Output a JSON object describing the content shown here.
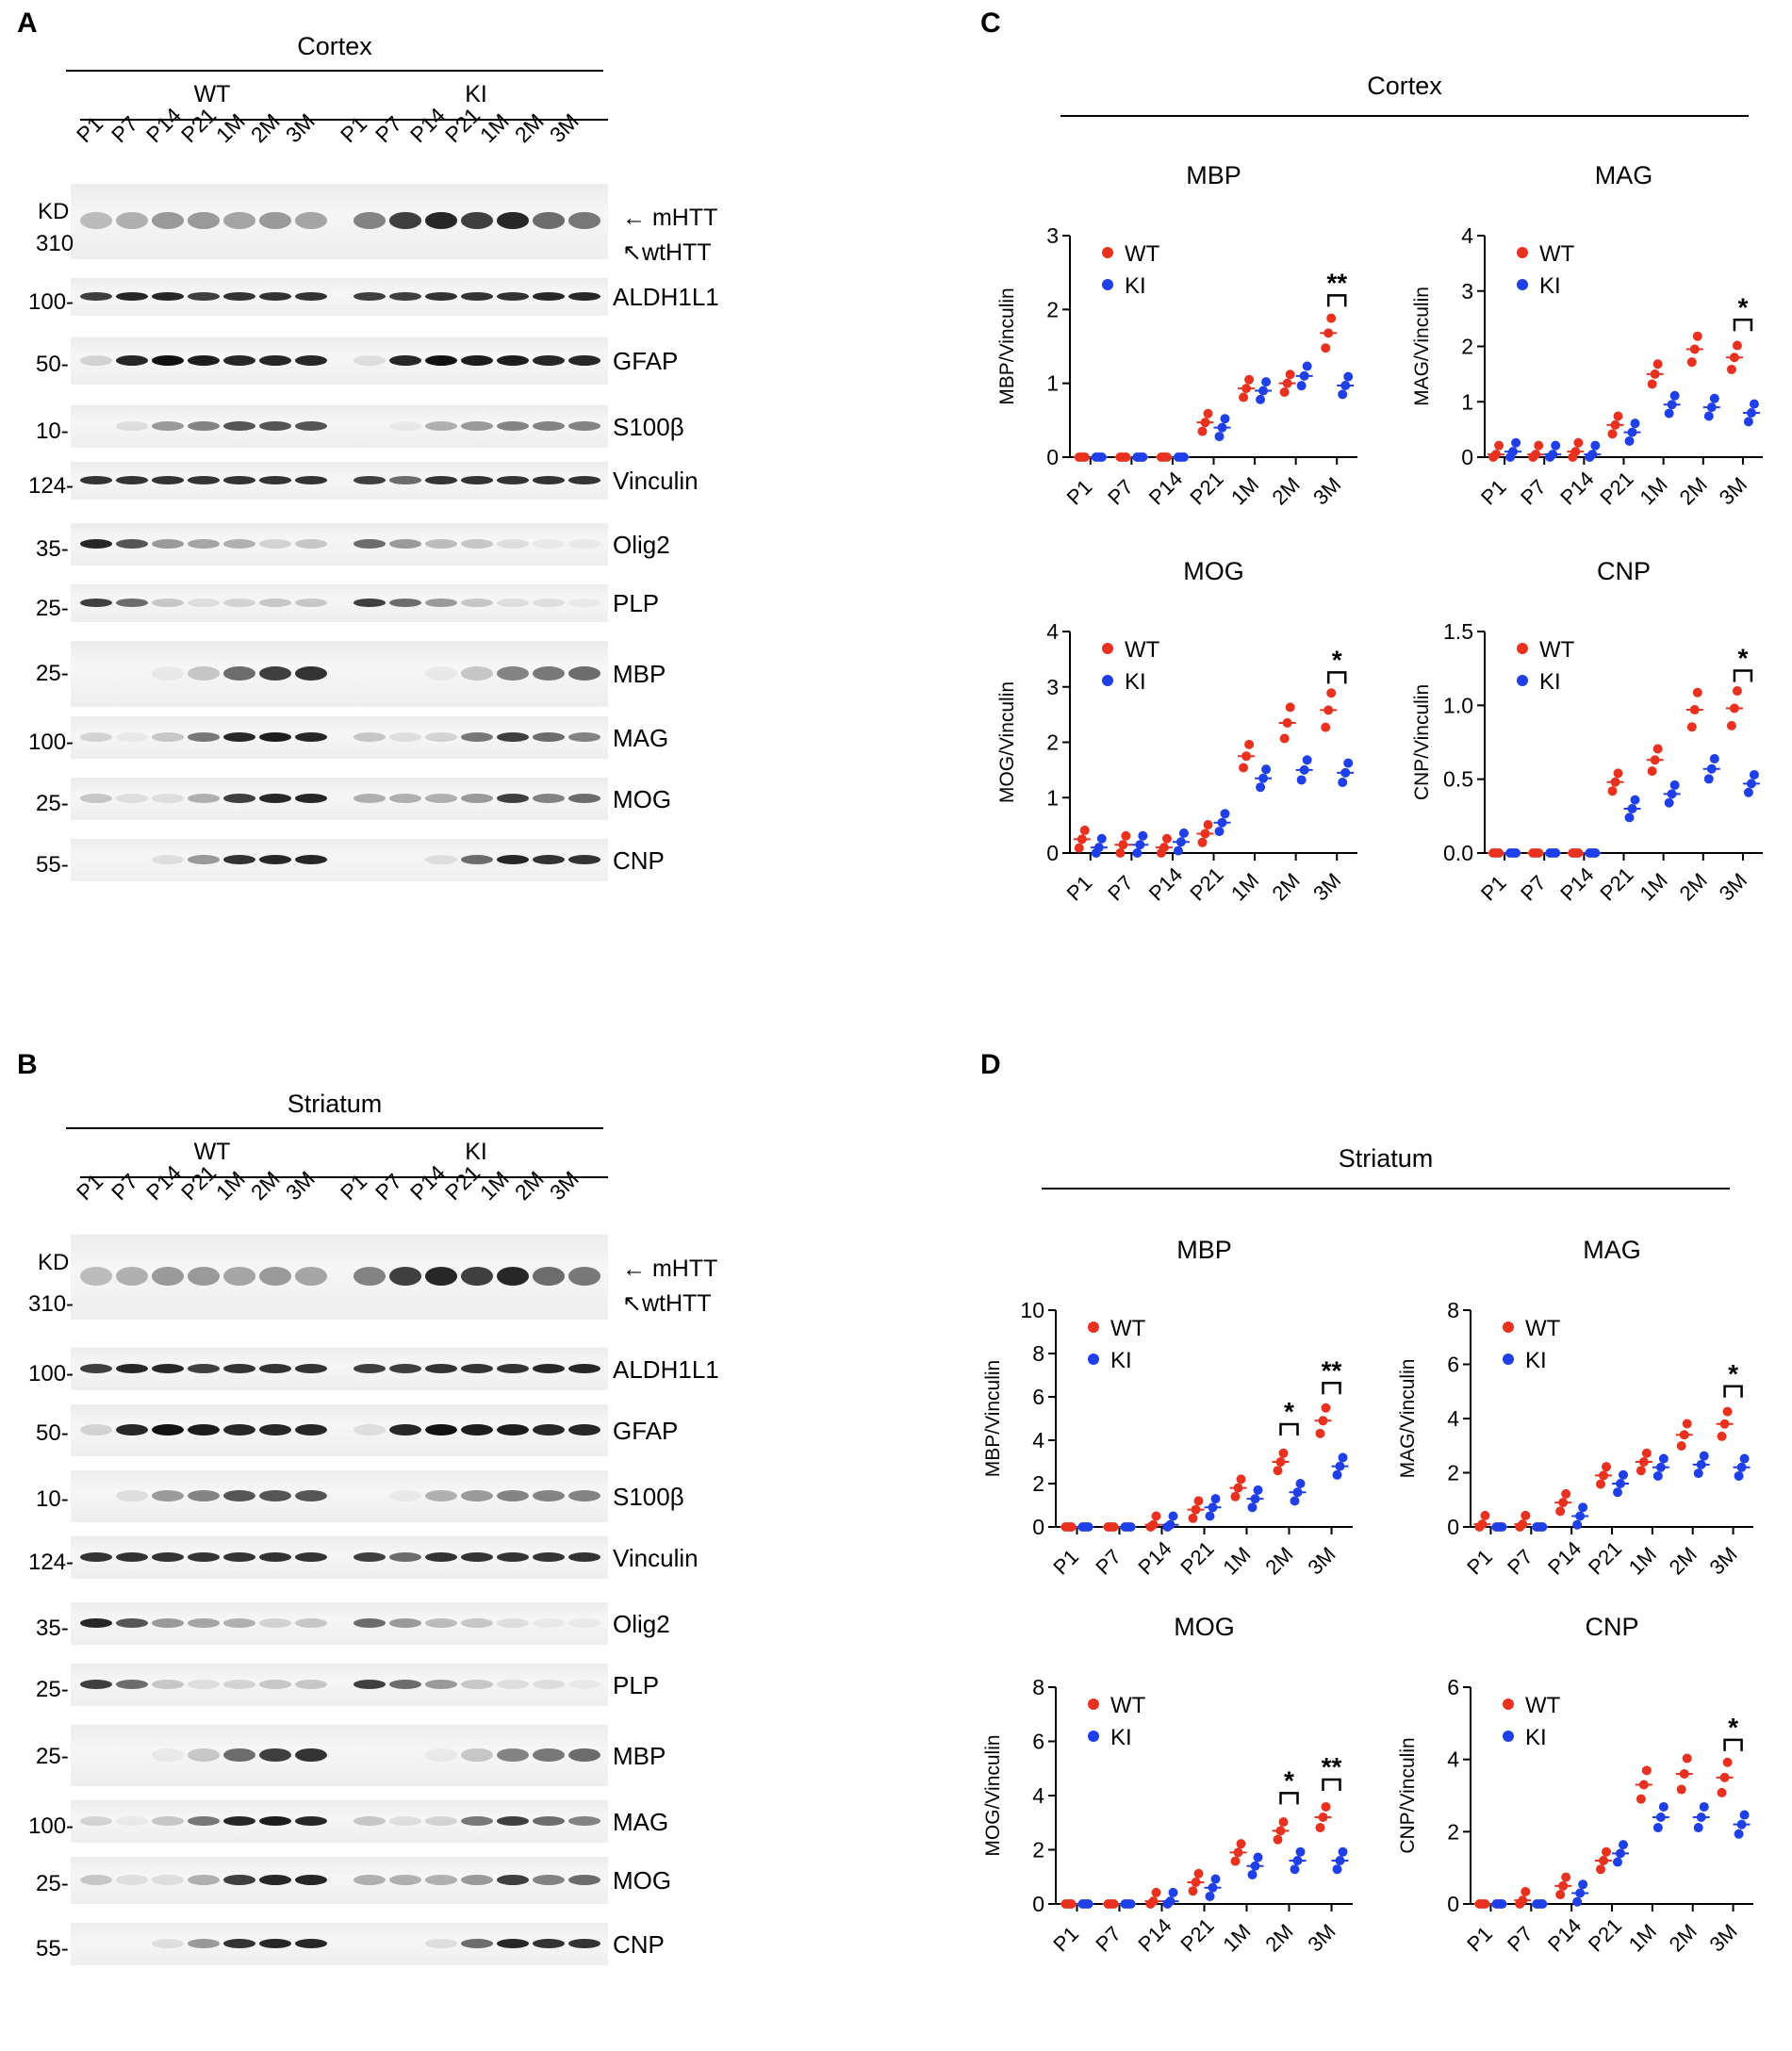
{
  "blots": [
    {
      "letter": "A",
      "region": "Cortex",
      "genotypes": [
        "WT",
        "KI"
      ],
      "lanes": [
        "P1",
        "P7",
        "P14",
        "P21",
        "1M",
        "2M",
        "3M"
      ],
      "kd_header": "KD",
      "rows": [
        {
          "protein": "",
          "marker": "310",
          "htt": true
        },
        {
          "protein": "ALDH1L1",
          "marker": "100-"
        },
        {
          "protein": "GFAP",
          "marker": "50-"
        },
        {
          "protein": "S100β",
          "marker": "10-"
        },
        {
          "protein": "Vinculin",
          "marker": "124-"
        },
        {
          "protein": "Olig2",
          "marker": "35-"
        },
        {
          "protein": "PLP",
          "marker": "25-"
        },
        {
          "protein": "MBP",
          "marker": "25-"
        },
        {
          "protein": "MAG",
          "marker": "100-"
        },
        {
          "protein": "MOG",
          "marker": "25-"
        },
        {
          "protein": "CNP",
          "marker": "55-"
        }
      ],
      "htt_labels": [
        "mHTT",
        "wtHTT"
      ]
    },
    {
      "letter": "B",
      "region": "Striatum",
      "genotypes": [
        "WT",
        "KI"
      ],
      "lanes": [
        "P1",
        "P7",
        "P14",
        "P21",
        "1M",
        "2M",
        "3M"
      ],
      "kd_header": "KD",
      "rows": [
        {
          "protein": "",
          "marker": "310-",
          "htt": true
        },
        {
          "protein": "ALDH1L1",
          "marker": "100-"
        },
        {
          "protein": "GFAP",
          "marker": "50-"
        },
        {
          "protein": "S100β",
          "marker": "10-"
        },
        {
          "protein": "Vinculin",
          "marker": "124-"
        },
        {
          "protein": "Olig2",
          "marker": "35-"
        },
        {
          "protein": "PLP",
          "marker": "25-"
        },
        {
          "protein": "MBP",
          "marker": "25-"
        },
        {
          "protein": "MAG",
          "marker": "100-"
        },
        {
          "protein": "MOG",
          "marker": "25-"
        },
        {
          "protein": "CNP",
          "marker": "55-"
        }
      ],
      "htt_labels": [
        "mHTT",
        "wtHTT"
      ]
    }
  ],
  "panels": [
    {
      "letter": "C",
      "region": "Cortex"
    },
    {
      "letter": "D",
      "region": "Striatum"
    }
  ],
  "colors": {
    "wt": "#e8321f",
    "ki": "#1f3fe8"
  },
  "chart_data": [
    {
      "type": "scatter",
      "title": "MBP",
      "ylabel": "MBP/Vinculin",
      "ylim": [
        0,
        3
      ],
      "yticks": [
        "0",
        "1",
        "2",
        "3"
      ],
      "categories": [
        "P1",
        "P7",
        "P14",
        "P21",
        "1M",
        "2M",
        "3M"
      ],
      "series": [
        {
          "name": "WT",
          "values": [
            0,
            0,
            0,
            0.47,
            0.93,
            1.0,
            1.68
          ]
        },
        {
          "name": "KI",
          "values": [
            0,
            0,
            0,
            0.4,
            0.9,
            1.1,
            0.97
          ]
        }
      ],
      "annotations": [
        {
          "category": "3M",
          "text": "**"
        }
      ]
    },
    {
      "type": "scatter",
      "title": "MAG",
      "ylabel": "MAG/Vinculin",
      "ylim": [
        0,
        4
      ],
      "yticks": [
        "0",
        "1",
        "2",
        "3",
        "4"
      ],
      "categories": [
        "P1",
        "P7",
        "P14",
        "P21",
        "1M",
        "2M",
        "3M"
      ],
      "series": [
        {
          "name": "WT",
          "values": [
            0.05,
            0.05,
            0.1,
            0.58,
            1.5,
            1.95,
            1.8
          ]
        },
        {
          "name": "KI",
          "values": [
            0.1,
            0.05,
            0.05,
            0.45,
            0.95,
            0.9,
            0.8
          ]
        }
      ],
      "annotations": [
        {
          "category": "3M",
          "text": "*"
        }
      ]
    },
    {
      "type": "scatter",
      "title": "MOG",
      "ylabel": "MOG/Vinculin",
      "ylim": [
        0,
        4
      ],
      "yticks": [
        "0",
        "1",
        "2",
        "3",
        "4"
      ],
      "categories": [
        "P1",
        "P7",
        "P14",
        "P21",
        "1M",
        "2M",
        "3M"
      ],
      "series": [
        {
          "name": "WT",
          "values": [
            0.25,
            0.15,
            0.1,
            0.35,
            1.75,
            2.35,
            2.58
          ]
        },
        {
          "name": "KI",
          "values": [
            0.1,
            0.15,
            0.2,
            0.55,
            1.35,
            1.5,
            1.45
          ]
        }
      ],
      "annotations": [
        {
          "category": "3M",
          "text": "*"
        }
      ]
    },
    {
      "type": "scatter",
      "title": "CNP",
      "ylabel": "CNP/Vinculin",
      "ylim": [
        0,
        1.5
      ],
      "yticks": [
        "0.0",
        "0.5",
        "1.0",
        "1.5"
      ],
      "categories": [
        "P1",
        "P7",
        "P14",
        "P21",
        "1M",
        "2M",
        "3M"
      ],
      "series": [
        {
          "name": "WT",
          "values": [
            0,
            0,
            0,
            0.48,
            0.63,
            0.97,
            0.98
          ]
        },
        {
          "name": "KI",
          "values": [
            0,
            0,
            0,
            0.3,
            0.4,
            0.57,
            0.47
          ]
        }
      ],
      "annotations": [
        {
          "category": "3M",
          "text": "*"
        }
      ]
    },
    {
      "type": "scatter",
      "title": "MBP",
      "ylabel": "MBP/Vinculin",
      "ylim": [
        0,
        10
      ],
      "yticks": [
        "0",
        "2",
        "4",
        "6",
        "8",
        "10"
      ],
      "categories": [
        "P1",
        "P7",
        "P14",
        "P21",
        "1M",
        "2M",
        "3M"
      ],
      "series": [
        {
          "name": "WT",
          "values": [
            0,
            0,
            0.1,
            0.8,
            1.8,
            3.0,
            4.9
          ]
        },
        {
          "name": "KI",
          "values": [
            0,
            0,
            0.1,
            0.9,
            1.3,
            1.6,
            2.8
          ]
        }
      ],
      "annotations": [
        {
          "category": "2M",
          "text": "*"
        },
        {
          "category": "3M",
          "text": "**"
        }
      ]
    },
    {
      "type": "scatter",
      "title": "MAG",
      "ylabel": "MAG/Vinculin",
      "ylim": [
        0,
        8
      ],
      "yticks": [
        "0",
        "2",
        "4",
        "6",
        "8"
      ],
      "categories": [
        "P1",
        "P7",
        "P14",
        "P21",
        "1M",
        "2M",
        "3M"
      ],
      "series": [
        {
          "name": "WT",
          "values": [
            0.1,
            0.1,
            0.9,
            1.9,
            2.4,
            3.4,
            3.8
          ]
        },
        {
          "name": "KI",
          "values": [
            0,
            0,
            0.4,
            1.6,
            2.2,
            2.3,
            2.2
          ]
        }
      ],
      "annotations": [
        {
          "category": "3M",
          "text": "*"
        }
      ]
    },
    {
      "type": "scatter",
      "title": "MOG",
      "ylabel": "MOG/Vinculin",
      "ylim": [
        0,
        8
      ],
      "yticks": [
        "0",
        "2",
        "4",
        "6",
        "8"
      ],
      "categories": [
        "P1",
        "P7",
        "P14",
        "P21",
        "1M",
        "2M",
        "3M"
      ],
      "series": [
        {
          "name": "WT",
          "values": [
            0,
            0,
            0.1,
            0.8,
            1.9,
            2.7,
            3.2
          ]
        },
        {
          "name": "KI",
          "values": [
            0,
            0,
            0.1,
            0.6,
            1.4,
            1.6,
            1.6
          ]
        }
      ],
      "annotations": [
        {
          "category": "2M",
          "text": "*"
        },
        {
          "category": "3M",
          "text": "**"
        }
      ]
    },
    {
      "type": "scatter",
      "title": "CNP",
      "ylabel": "CNP/Vinculin",
      "ylim": [
        0,
        6
      ],
      "yticks": [
        "0",
        "2",
        "4",
        "6"
      ],
      "categories": [
        "P1",
        "P7",
        "P14",
        "P21",
        "1M",
        "2M",
        "3M"
      ],
      "series": [
        {
          "name": "WT",
          "values": [
            0,
            0.1,
            0.5,
            1.2,
            3.3,
            3.6,
            3.5
          ]
        },
        {
          "name": "KI",
          "values": [
            0,
            0,
            0.3,
            1.4,
            2.4,
            2.4,
            2.2
          ]
        }
      ],
      "annotations": [
        {
          "category": "3M",
          "text": "*"
        }
      ]
    }
  ]
}
